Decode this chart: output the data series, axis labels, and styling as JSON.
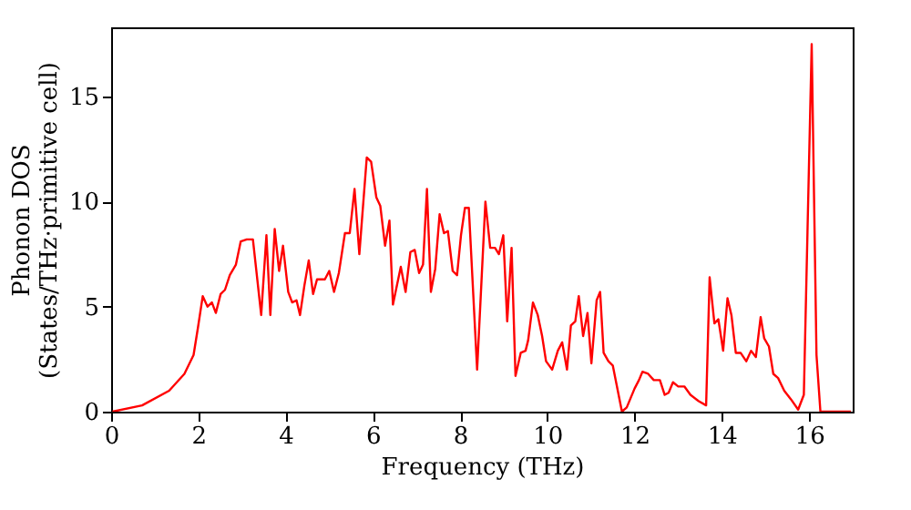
{
  "chart_data": {
    "type": "line",
    "xlabel": "Frequency (THz)",
    "ylabel": "Phonon DOS\n(States/THz·primitive cell)",
    "xlim": [
      0,
      17
    ],
    "ylim": [
      0,
      18.3
    ],
    "xticks": [
      0,
      2,
      4,
      6,
      8,
      10,
      12,
      14,
      16
    ],
    "yticks": [
      0,
      5,
      10,
      15
    ],
    "grid": false,
    "series": [
      {
        "color": "#ff0000",
        "x": [
          0.03,
          0.71,
          1.33,
          1.68,
          1.89,
          1.99,
          2.1,
          2.21,
          2.31,
          2.4,
          2.51,
          2.61,
          2.72,
          2.86,
          2.97,
          3.11,
          3.25,
          3.44,
          3.56,
          3.65,
          3.75,
          3.85,
          3.94,
          4.06,
          4.15,
          4.25,
          4.33,
          4.43,
          4.53,
          4.63,
          4.72,
          4.81,
          4.9,
          5.0,
          5.11,
          5.22,
          5.36,
          5.47,
          5.58,
          5.69,
          5.86,
          5.96,
          6.08,
          6.17,
          6.28,
          6.38,
          6.46,
          6.64,
          6.75,
          6.86,
          6.96,
          7.06,
          7.15,
          7.24,
          7.33,
          7.43,
          7.53,
          7.63,
          7.72,
          7.83,
          7.93,
          8.02,
          8.11,
          8.2,
          8.39,
          8.58,
          8.69,
          8.8,
          8.89,
          8.99,
          9.08,
          9.18,
          9.27,
          9.39,
          9.5,
          9.56,
          9.67,
          9.78,
          9.88,
          9.97,
          10.11,
          10.24,
          10.34,
          10.45,
          10.54,
          10.64,
          10.72,
          10.82,
          10.92,
          11.01,
          11.13,
          11.21,
          11.29,
          11.4,
          11.5,
          11.71,
          11.82,
          12.0,
          12.1,
          12.18,
          12.31,
          12.44,
          12.58,
          12.69,
          12.78,
          12.88,
          13.0,
          13.14,
          13.28,
          13.47,
          13.64,
          13.72,
          13.83,
          13.92,
          14.03,
          14.13,
          14.22,
          14.32,
          14.43,
          14.56,
          14.67,
          14.78,
          14.89,
          14.97,
          15.08,
          15.18,
          15.29,
          15.43,
          15.58,
          15.75,
          15.88,
          16.06,
          16.17,
          16.26,
          16.96
        ],
        "values": [
          0,
          0.3,
          1.0,
          1.8,
          2.7,
          4.0,
          5.5,
          5.0,
          5.2,
          4.7,
          5.6,
          5.8,
          6.5,
          7.0,
          8.1,
          8.2,
          8.2,
          4.6,
          8.4,
          4.6,
          8.7,
          6.7,
          7.9,
          5.7,
          5.2,
          5.3,
          4.6,
          6.0,
          7.2,
          5.6,
          6.3,
          6.3,
          6.3,
          6.7,
          5.7,
          6.6,
          8.5,
          8.5,
          10.6,
          7.5,
          12.1,
          11.9,
          10.2,
          9.8,
          7.9,
          9.1,
          5.1,
          6.9,
          5.7,
          7.6,
          7.7,
          6.6,
          7.0,
          10.6,
          5.7,
          6.8,
          9.4,
          8.5,
          8.6,
          6.7,
          6.5,
          8.4,
          9.7,
          9.7,
          2.0,
          10.0,
          7.8,
          7.8,
          7.5,
          8.4,
          4.3,
          7.8,
          1.7,
          2.8,
          2.9,
          3.4,
          5.2,
          4.6,
          3.6,
          2.4,
          2.0,
          2.9,
          3.3,
          2.0,
          4.1,
          4.3,
          5.5,
          3.6,
          4.7,
          2.3,
          5.3,
          5.7,
          2.8,
          2.4,
          2.2,
          0,
          0.2,
          1.1,
          1.5,
          1.9,
          1.8,
          1.5,
          1.5,
          0.8,
          0.9,
          1.4,
          1.2,
          1.2,
          0.8,
          0.5,
          0.3,
          6.4,
          4.2,
          4.4,
          2.9,
          5.4,
          4.6,
          2.8,
          2.8,
          2.4,
          2.9,
          2.6,
          4.5,
          3.5,
          3.1,
          1.8,
          1.6,
          1.0,
          0.6,
          0.1,
          0.8,
          17.5,
          2.7,
          0,
          0
        ]
      }
    ]
  }
}
